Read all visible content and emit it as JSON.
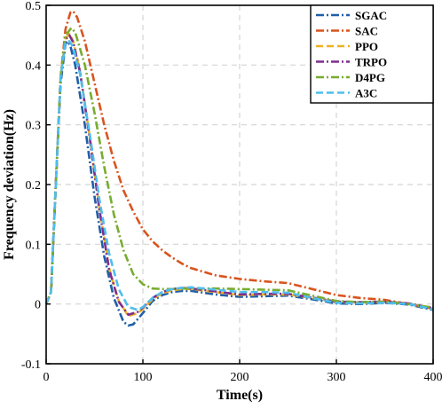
{
  "chart_data": {
    "type": "line",
    "title": "",
    "xlabel": "Time(s)",
    "ylabel": "Frequency deviation(Hz)",
    "xlim": [
      0,
      400
    ],
    "ylim": [
      -0.1,
      0.5
    ],
    "xticks": [
      0,
      100,
      200,
      300,
      400
    ],
    "yticks": [
      -0.1,
      0,
      0.1,
      0.2,
      0.3,
      0.4,
      0.5
    ],
    "xtick_labels": [
      "0",
      "100",
      "200",
      "300",
      "400"
    ],
    "ytick_labels": [
      "-0.1",
      "0",
      "0.1",
      "0.2",
      "0.3",
      "0.4",
      "0.5"
    ],
    "grid": true,
    "legend_position": "top-right",
    "series": [
      {
        "name": "SGAC",
        "color": "#1f5fa8",
        "style": "dashdot",
        "x": [
          0,
          5,
          10,
          15,
          20,
          22,
          25,
          30,
          40,
          50,
          60,
          70,
          80,
          85,
          90,
          100,
          110,
          120,
          130,
          140,
          150,
          175,
          200,
          225,
          250,
          275,
          300,
          325,
          350,
          375,
          400
        ],
        "y": [
          0.0,
          0.02,
          0.2,
          0.37,
          0.435,
          0.44,
          0.432,
          0.4,
          0.3,
          0.18,
          0.08,
          0.01,
          -0.03,
          -0.036,
          -0.034,
          -0.015,
          0.005,
          0.015,
          0.02,
          0.022,
          0.022,
          0.016,
          0.012,
          0.013,
          0.014,
          0.008,
          0.001,
          0.0,
          0.002,
          -0.001,
          -0.01
        ]
      },
      {
        "name": "SAC",
        "color": "#d9541e",
        "style": "dashdot",
        "x": [
          0,
          5,
          10,
          15,
          20,
          25,
          28,
          32,
          40,
          50,
          60,
          70,
          80,
          90,
          100,
          110,
          120,
          130,
          140,
          150,
          175,
          200,
          225,
          250,
          275,
          300,
          325,
          350,
          375,
          400
        ],
        "y": [
          0.0,
          0.02,
          0.2,
          0.38,
          0.46,
          0.488,
          0.49,
          0.48,
          0.44,
          0.37,
          0.3,
          0.24,
          0.19,
          0.155,
          0.125,
          0.105,
          0.09,
          0.078,
          0.068,
          0.06,
          0.048,
          0.042,
          0.038,
          0.035,
          0.025,
          0.015,
          0.01,
          0.007,
          0.0,
          -0.008
        ]
      },
      {
        "name": "PPO",
        "color": "#eeb220",
        "style": "dashed",
        "x": [
          0,
          5,
          10,
          15,
          20,
          24,
          28,
          35,
          45,
          55,
          65,
          75,
          85,
          95,
          100,
          110,
          120,
          130,
          140,
          150,
          175,
          200,
          225,
          250,
          275,
          300,
          325,
          350,
          375,
          400
        ],
        "y": [
          0.0,
          0.02,
          0.2,
          0.38,
          0.445,
          0.452,
          0.44,
          0.39,
          0.28,
          0.16,
          0.06,
          0.005,
          -0.02,
          -0.015,
          -0.008,
          0.008,
          0.018,
          0.023,
          0.025,
          0.025,
          0.02,
          0.015,
          0.016,
          0.016,
          0.01,
          0.003,
          0.002,
          0.003,
          0.0,
          -0.008
        ]
      },
      {
        "name": "TRPO",
        "color": "#7e2f8e",
        "style": "dashdot",
        "x": [
          0,
          5,
          10,
          15,
          20,
          24,
          28,
          35,
          45,
          55,
          65,
          75,
          85,
          95,
          100,
          110,
          120,
          130,
          140,
          150,
          175,
          200,
          225,
          250,
          275,
          300,
          325,
          350,
          375,
          400
        ],
        "y": [
          0.0,
          0.02,
          0.2,
          0.38,
          0.443,
          0.45,
          0.438,
          0.388,
          0.278,
          0.158,
          0.058,
          0.004,
          -0.018,
          -0.013,
          -0.006,
          0.01,
          0.02,
          0.025,
          0.027,
          0.026,
          0.021,
          0.016,
          0.017,
          0.017,
          0.011,
          0.004,
          0.003,
          0.004,
          0.001,
          -0.007
        ]
      },
      {
        "name": "D4PG",
        "color": "#77ac30",
        "style": "dashdot",
        "x": [
          0,
          5,
          10,
          15,
          20,
          26,
          30,
          40,
          50,
          60,
          70,
          80,
          90,
          100,
          110,
          120,
          130,
          140,
          150,
          175,
          200,
          225,
          250,
          275,
          300,
          325,
          350,
          375,
          400
        ],
        "y": [
          0.0,
          0.02,
          0.2,
          0.38,
          0.45,
          0.462,
          0.455,
          0.4,
          0.32,
          0.23,
          0.15,
          0.09,
          0.05,
          0.033,
          0.026,
          0.025,
          0.025,
          0.026,
          0.026,
          0.026,
          0.025,
          0.024,
          0.023,
          0.014,
          0.005,
          0.003,
          0.004,
          0.0,
          -0.006
        ]
      },
      {
        "name": "A3C",
        "color": "#4dbeee",
        "style": "dashed",
        "x": [
          0,
          5,
          10,
          15,
          20,
          24,
          28,
          35,
          45,
          55,
          65,
          75,
          85,
          95,
          100,
          110,
          120,
          130,
          140,
          150,
          175,
          200,
          225,
          250,
          275,
          300,
          325,
          350,
          375,
          400
        ],
        "y": [
          0.0,
          0.02,
          0.2,
          0.38,
          0.438,
          0.44,
          0.43,
          0.385,
          0.285,
          0.175,
          0.085,
          0.025,
          -0.005,
          -0.01,
          -0.005,
          0.01,
          0.02,
          0.025,
          0.027,
          0.028,
          0.024,
          0.02,
          0.02,
          0.019,
          0.01,
          0.002,
          0.001,
          0.002,
          0.0,
          -0.009
        ]
      }
    ]
  }
}
